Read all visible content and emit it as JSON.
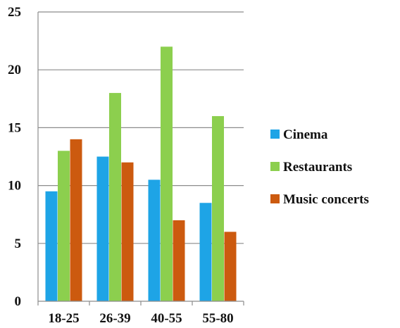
{
  "chart_data": {
    "type": "bar",
    "categories": [
      "18-25",
      "26-39",
      "40-55",
      "55-80"
    ],
    "series": [
      {
        "name": "Cinema",
        "values": [
          9.5,
          12.5,
          10.5,
          8.5
        ],
        "color": "#1ea4e6"
      },
      {
        "name": "Restaurants",
        "values": [
          13,
          18,
          22,
          16
        ],
        "color": "#8ccf4e"
      },
      {
        "name": "Music concerts",
        "values": [
          14,
          12,
          7,
          6
        ],
        "color": "#cc5a0f"
      }
    ],
    "ylim": [
      0,
      25
    ],
    "yticks": [
      "0",
      "5",
      "10",
      "15",
      "20",
      "25"
    ],
    "grid": true,
    "legend_position": "right",
    "title": "",
    "xlabel": "",
    "ylabel": ""
  }
}
